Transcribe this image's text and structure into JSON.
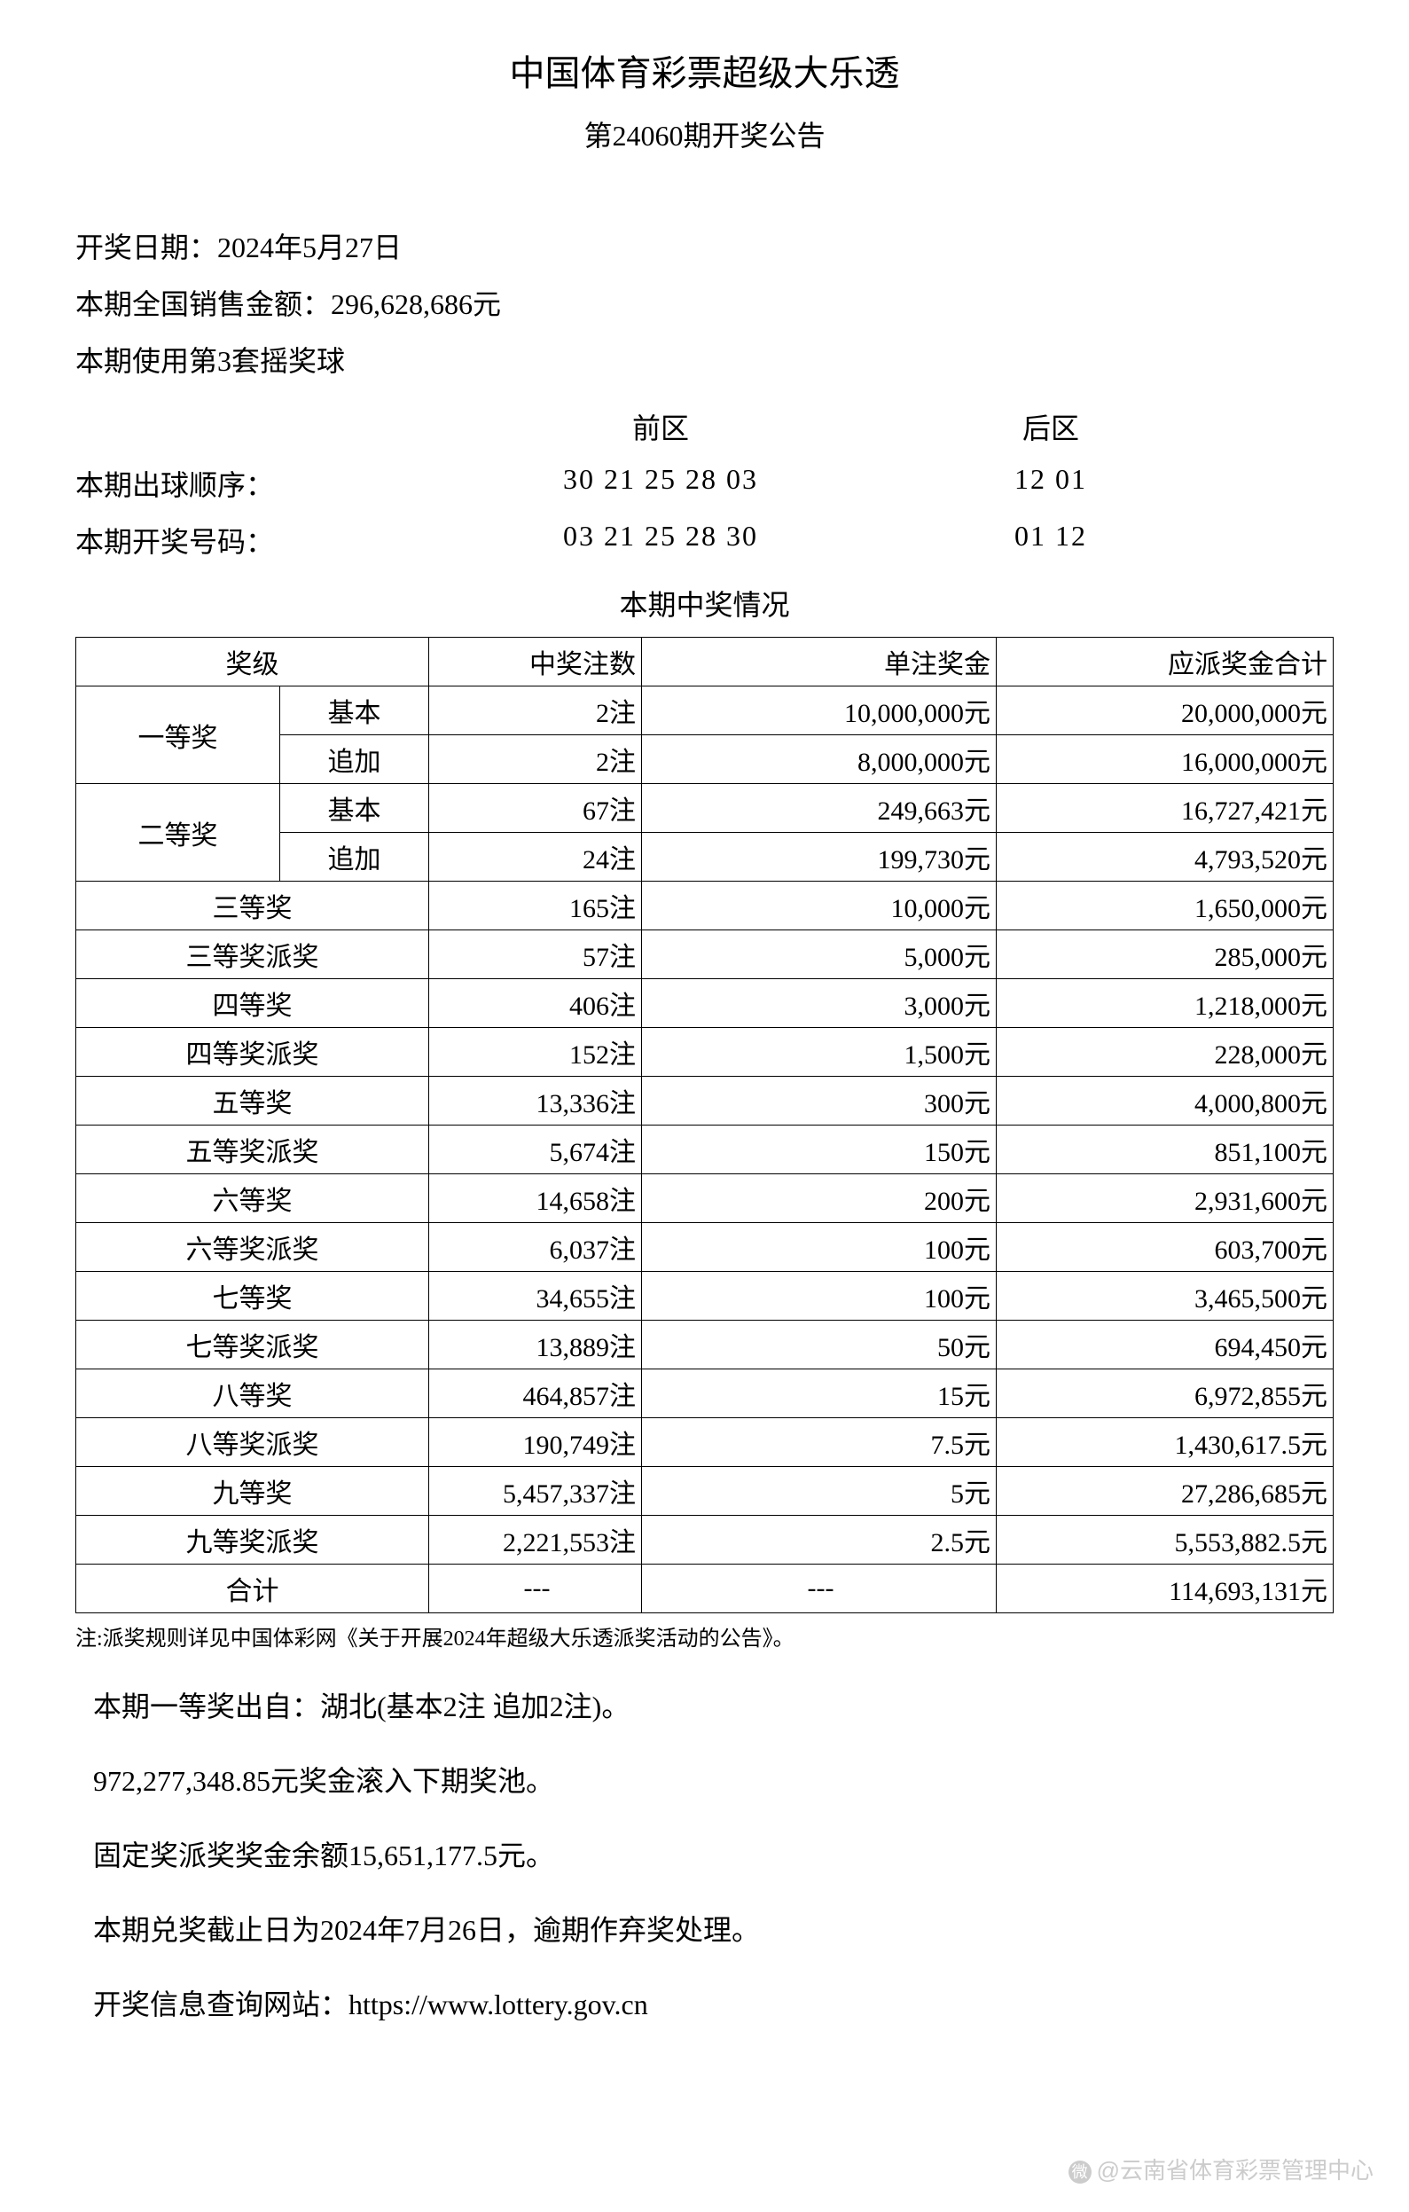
{
  "header": {
    "title": "中国体育彩票超级大乐透",
    "subtitle": "第24060期开奖公告"
  },
  "info": {
    "draw_date_label": "开奖日期：2024年5月27日",
    "sales_label": "本期全国销售金额：296,628,686元",
    "ballset_label": "本期使用第3套摇奖球"
  },
  "zones": {
    "front_label": "前区",
    "back_label": "后区",
    "draw_order_label": "本期出球顺序：",
    "draw_order_front": "30 21 25 28 03",
    "draw_order_back": "12 01",
    "winning_label": "本期开奖号码：",
    "winning_front": "03 21 25 28 30",
    "winning_back": "01 12"
  },
  "table": {
    "title": "本期中奖情况",
    "headers": {
      "prize": "奖级",
      "count": "中奖注数",
      "amount": "单注奖金",
      "total": "应派奖金合计"
    },
    "first_prize": "一等奖",
    "second_prize": "二等奖",
    "basic": "基本",
    "additional": "追加",
    "rows": {
      "r1": {
        "name": "一等奖",
        "sub": "基本",
        "count": "2注",
        "amount": "10,000,000元",
        "total": "20,000,000元"
      },
      "r2": {
        "sub": "追加",
        "count": "2注",
        "amount": "8,000,000元",
        "total": "16,000,000元"
      },
      "r3": {
        "name": "二等奖",
        "sub": "基本",
        "count": "67注",
        "amount": "249,663元",
        "total": "16,727,421元"
      },
      "r4": {
        "sub": "追加",
        "count": "24注",
        "amount": "199,730元",
        "total": "4,793,520元"
      },
      "r5": {
        "name": "三等奖",
        "count": "165注",
        "amount": "10,000元",
        "total": "1,650,000元"
      },
      "r6": {
        "name": "三等奖派奖",
        "count": "57注",
        "amount": "5,000元",
        "total": "285,000元"
      },
      "r7": {
        "name": "四等奖",
        "count": "406注",
        "amount": "3,000元",
        "total": "1,218,000元"
      },
      "r8": {
        "name": "四等奖派奖",
        "count": "152注",
        "amount": "1,500元",
        "total": "228,000元"
      },
      "r9": {
        "name": "五等奖",
        "count": "13,336注",
        "amount": "300元",
        "total": "4,000,800元"
      },
      "r10": {
        "name": "五等奖派奖",
        "count": "5,674注",
        "amount": "150元",
        "total": "851,100元"
      },
      "r11": {
        "name": "六等奖",
        "count": "14,658注",
        "amount": "200元",
        "total": "2,931,600元"
      },
      "r12": {
        "name": "六等奖派奖",
        "count": "6,037注",
        "amount": "100元",
        "total": "603,700元"
      },
      "r13": {
        "name": "七等奖",
        "count": "34,655注",
        "amount": "100元",
        "total": "3,465,500元"
      },
      "r14": {
        "name": "七等奖派奖",
        "count": "13,889注",
        "amount": "50元",
        "total": "694,450元"
      },
      "r15": {
        "name": "八等奖",
        "count": "464,857注",
        "amount": "15元",
        "total": "6,972,855元"
      },
      "r16": {
        "name": "八等奖派奖",
        "count": "190,749注",
        "amount": "7.5元",
        "total": "1,430,617.5元"
      },
      "r17": {
        "name": "九等奖",
        "count": "5,457,337注",
        "amount": "5元",
        "total": "27,286,685元"
      },
      "r18": {
        "name": "九等奖派奖",
        "count": "2,221,553注",
        "amount": "2.5元",
        "total": "5,553,882.5元"
      },
      "r19": {
        "name": "合计",
        "count": "---",
        "amount": "---",
        "total": "114,693,131元"
      }
    }
  },
  "footnote": "注:派奖规则详见中国体彩网《关于开展2024年超级大乐透派奖活动的公告》。",
  "bottom": {
    "line1": "本期一等奖出自：湖北(基本2注 追加2注)。",
    "line2": "972,277,348.85元奖金滚入下期奖池。",
    "line3": "固定奖派奖奖金余额15,651,177.5元。",
    "line4": "本期兑奖截止日为2024年7月26日，逾期作弃奖处理。",
    "line5": "开奖信息查询网站：https://www.lottery.gov.cn"
  },
  "watermark": {
    "text": "@云南省体育彩票管理中心"
  },
  "style": {
    "type": "table",
    "background_color": "#ffffff",
    "text_color": "#000000",
    "border_color": "#000000",
    "watermark_color": "#cccccc",
    "title_fontsize": 40,
    "body_fontsize": 32,
    "table_fontsize": 30,
    "footnote_fontsize": 24,
    "font_family": "SimSun"
  }
}
